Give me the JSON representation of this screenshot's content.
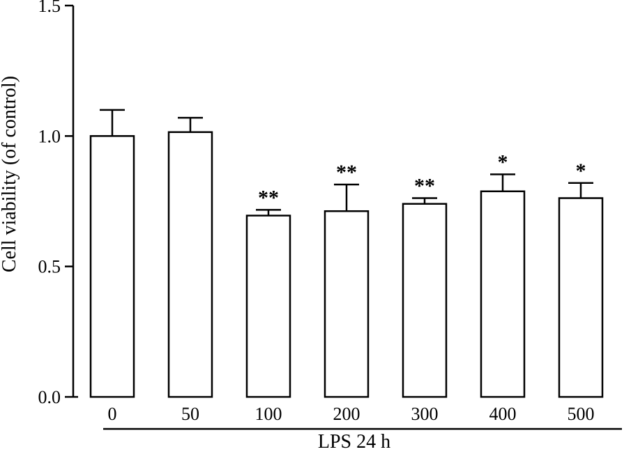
{
  "chart_data": {
    "type": "bar",
    "categories": [
      "0",
      "50",
      "100",
      "200",
      "300",
      "400",
      "500"
    ],
    "values": [
      1.0,
      1.015,
      0.695,
      0.712,
      0.74,
      0.788,
      0.762
    ],
    "errors": [
      0.1,
      0.055,
      0.022,
      0.102,
      0.022,
      0.065,
      0.058
    ],
    "significance": [
      "",
      "",
      "**",
      "**",
      "**",
      "*",
      "*"
    ],
    "title": "",
    "xlabel": "LPS 24 h",
    "ylabel": "Cell viability (of control)",
    "ylim": [
      0,
      1.5
    ],
    "yticks": [
      "0.0",
      "0.5",
      "1.0",
      "1.5"
    ],
    "bar_fill": "#ffffff",
    "bar_stroke": "#000000",
    "grid": false,
    "legend": "none"
  }
}
